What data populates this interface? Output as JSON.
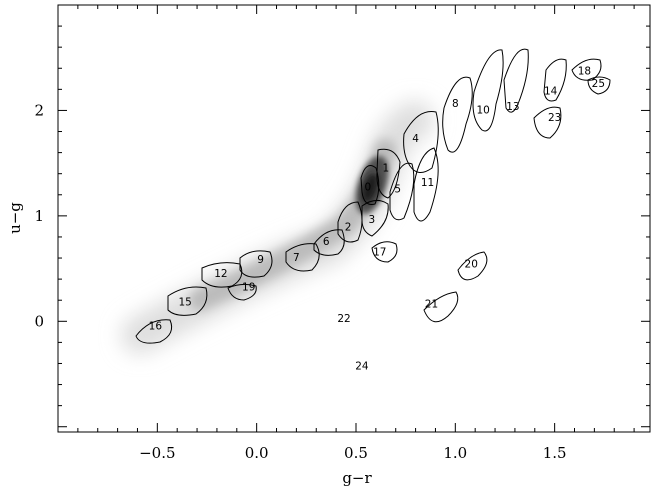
{
  "chart_data": {
    "type": "contour-density-scatter",
    "xlabel": "g−r",
    "ylabel": "u−g",
    "xlim": [
      -1.0,
      1.98
    ],
    "ylim": [
      -1.05,
      3.0
    ],
    "x_ticks": [
      {
        "value": -0.5,
        "label": "−0.5"
      },
      {
        "value": 0.0,
        "label": "0.0"
      },
      {
        "value": 0.5,
        "label": "0.5"
      },
      {
        "value": 1.0,
        "label": "1.0"
      },
      {
        "value": 1.5,
        "label": "1.5"
      }
    ],
    "y_ticks": [
      {
        "value": 0,
        "label": "0"
      },
      {
        "value": 1,
        "label": "1"
      },
      {
        "value": 2,
        "label": "2"
      }
    ],
    "grid": false,
    "background_density": "grayscale density of objects along the stellar locus, peaking near g−r≈0.55, u−g≈1.3",
    "clusters": [
      {
        "label": "0",
        "x": 0.56,
        "y": 1.28
      },
      {
        "label": "1",
        "x": 0.65,
        "y": 1.46
      },
      {
        "label": "2",
        "x": 0.46,
        "y": 0.9
      },
      {
        "label": "3",
        "x": 0.58,
        "y": 0.97
      },
      {
        "label": "4",
        "x": 0.8,
        "y": 1.74
      },
      {
        "label": "5",
        "x": 0.71,
        "y": 1.26
      },
      {
        "label": "6",
        "x": 0.35,
        "y": 0.76
      },
      {
        "label": "7",
        "x": 0.2,
        "y": 0.61
      },
      {
        "label": "8",
        "x": 1.0,
        "y": 2.07
      },
      {
        "label": "9",
        "x": 0.02,
        "y": 0.59
      },
      {
        "label": "10",
        "x": 1.14,
        "y": 2.01
      },
      {
        "label": "11",
        "x": 0.86,
        "y": 1.32
      },
      {
        "label": "12",
        "x": -0.18,
        "y": 0.46
      },
      {
        "label": "13",
        "x": 1.29,
        "y": 2.04
      },
      {
        "label": "14",
        "x": 1.48,
        "y": 2.19
      },
      {
        "label": "15",
        "x": -0.36,
        "y": 0.19
      },
      {
        "label": "16",
        "x": -0.51,
        "y": -0.04
      },
      {
        "label": "17",
        "x": 0.62,
        "y": 0.66
      },
      {
        "label": "18",
        "x": 1.65,
        "y": 2.38
      },
      {
        "label": "19",
        "x": -0.04,
        "y": 0.33
      },
      {
        "label": "20",
        "x": 1.08,
        "y": 0.55
      },
      {
        "label": "21",
        "x": 0.88,
        "y": 0.17
      },
      {
        "label": "22",
        "x": 0.44,
        "y": 0.03
      },
      {
        "label": "23",
        "x": 1.5,
        "y": 1.94
      },
      {
        "label": "24",
        "x": 0.53,
        "y": -0.42
      },
      {
        "label": "25",
        "x": 1.72,
        "y": 2.26
      }
    ]
  }
}
